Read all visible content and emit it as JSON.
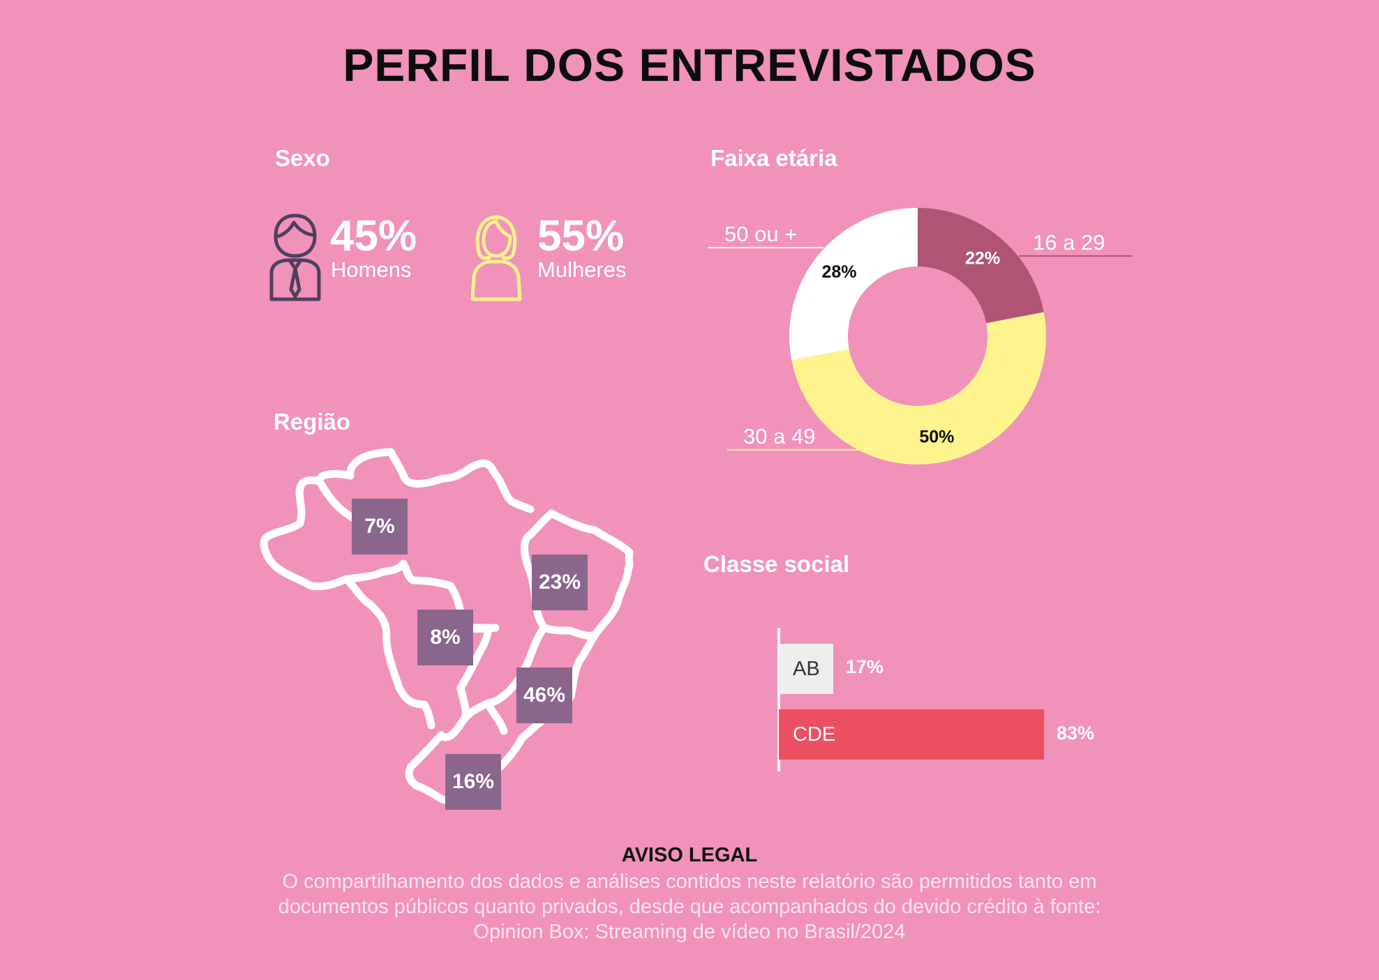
{
  "title": "PERFIL DOS ENTREVISTADOS",
  "sexo": {
    "title": "Sexo",
    "men": {
      "pct": "45%",
      "label": "Homens",
      "icon": "man-icon",
      "color": "#4f3f5e"
    },
    "women": {
      "pct": "55%",
      "label": "Mulheres",
      "icon": "woman-icon",
      "color": "#fff28c"
    }
  },
  "faixa": {
    "title": "Faixa etária"
  },
  "regiao": {
    "title": "Região",
    "icon": "brazil-map-icon",
    "badges": [
      "7%",
      "8%",
      "23%",
      "46%",
      "16%"
    ]
  },
  "classe": {
    "title": "Classe social"
  },
  "chart_data": [
    {
      "type": "pie",
      "title": "Faixa etária",
      "style": "donut",
      "categories": [
        "16 a 29",
        "30 a 49",
        "50 ou +"
      ],
      "values": [
        22,
        50,
        28
      ],
      "value_labels": [
        "22%",
        "50%",
        "28%"
      ],
      "colors": [
        "#b05476",
        "#fff38e",
        "#ffffff"
      ]
    },
    {
      "type": "bar",
      "title": "Classe social",
      "orientation": "horizontal",
      "categories": [
        "AB",
        "CDE"
      ],
      "values": [
        17,
        83
      ],
      "value_labels": [
        "17%",
        "83%"
      ],
      "colors": [
        "#eeeeee",
        "#ec4f62"
      ]
    }
  ],
  "disclaimer": {
    "title": "AVISO LEGAL",
    "lines": [
      "O compartilhamento dos dados e análises contidos neste relatório são permitidos tanto em",
      "documentos públicos quanto privados, desde que acompanhados do devido crédito à fonte:",
      "Opinion Box: Streaming de vídeo no Brasil/2024"
    ]
  }
}
